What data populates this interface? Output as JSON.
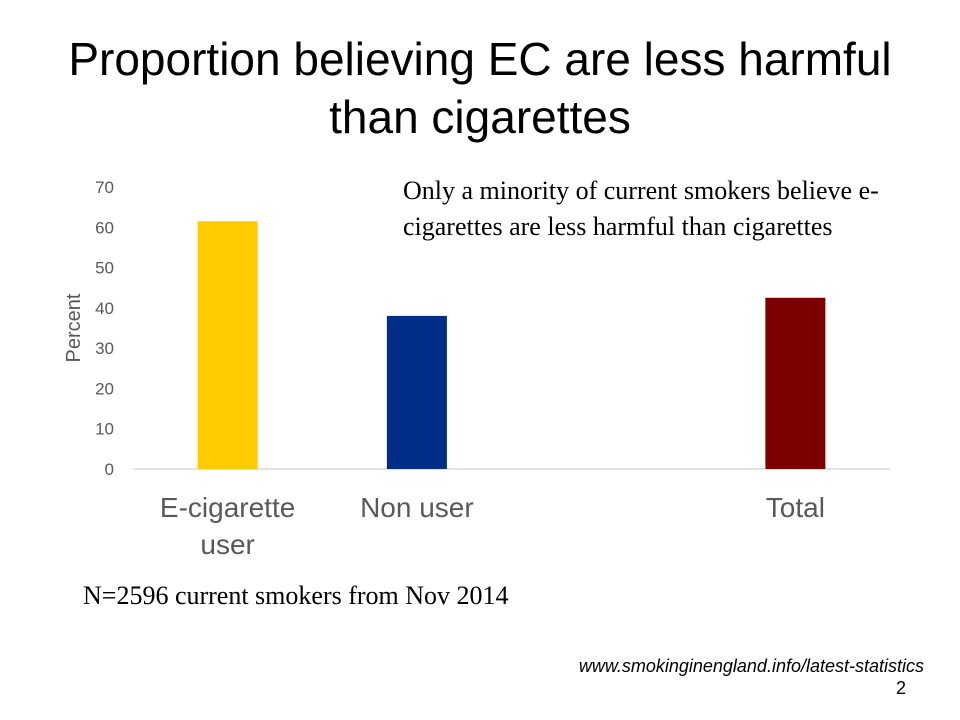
{
  "slide": {
    "title": "Proportion believing EC are less harmful than cigarettes",
    "annotation": "Only a minority of current smokers believe e-cigarettes are less harmful than cigarettes",
    "sample_note": "N=2596 current smokers from Nov 2014",
    "source": "www.smokinginengland.info/latest-statistics",
    "page_number": "2"
  },
  "chart_data": {
    "type": "bar",
    "categories": [
      {
        "lines": [
          "E-cigarette",
          "user"
        ]
      },
      {
        "lines": [
          "Non user"
        ]
      },
      {
        "lines": []
      },
      {
        "lines": [
          "Total"
        ]
      }
    ],
    "values": [
      61.5,
      38,
      null,
      42.5
    ],
    "colors": [
      "#FFCC00",
      "#002D87",
      null,
      "#7B0000"
    ],
    "ylabel": "Percent",
    "xlabel": "",
    "ylim": [
      0,
      70
    ],
    "yticks": [
      "0",
      "10",
      "20",
      "30",
      "40",
      "50",
      "60",
      "70"
    ],
    "grid": false,
    "legend": "none"
  }
}
